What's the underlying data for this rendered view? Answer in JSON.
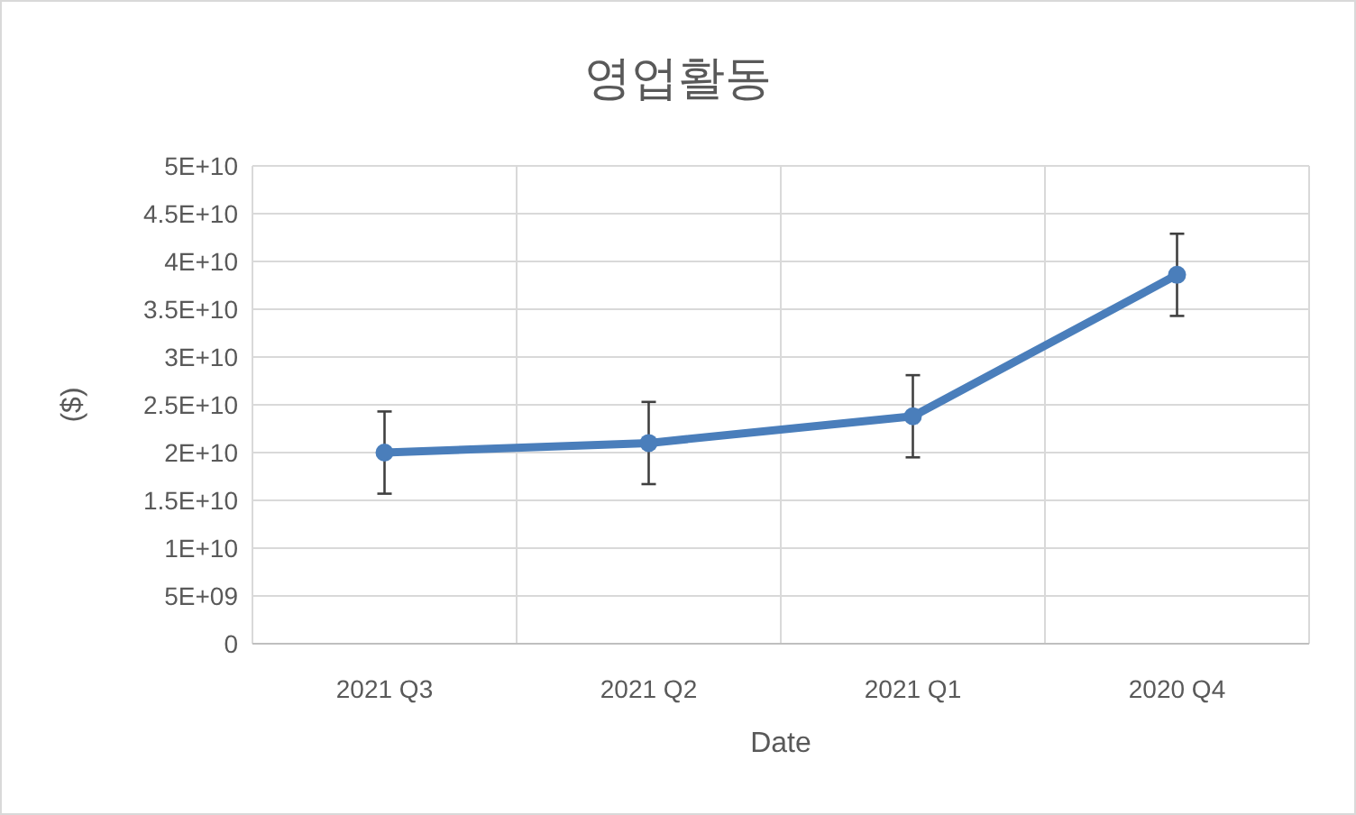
{
  "chart_data": {
    "type": "line",
    "title": "영업활동",
    "xlabel": "Date",
    "ylabel": "($)",
    "categories": [
      "2021 Q3",
      "2021 Q2",
      "2021 Q1",
      "2020 Q4"
    ],
    "series": [
      {
        "color": "#4a7ebb",
        "values": [
          20000000000.0,
          21000000000.0,
          23800000000.0,
          38600000000.0
        ],
        "errors": [
          4300000000.0,
          4300000000.0,
          4300000000.0,
          4300000000.0
        ]
      }
    ],
    "ylim": [
      0,
      50000000000.0
    ],
    "yticks": [
      0,
      {
        "value": 5000000000.0,
        "label": "5E+09"
      },
      {
        "value": 10000000000.0,
        "label": "1E+10"
      },
      {
        "value": 15000000000.0,
        "label": "1.5E+10"
      },
      {
        "value": 20000000000.0,
        "label": "2E+10"
      },
      {
        "value": 25000000000.0,
        "label": "2.5E+10"
      },
      {
        "value": 30000000000.0,
        "label": "3E+10"
      },
      {
        "value": 35000000000.0,
        "label": "3.5E+10"
      },
      {
        "value": 40000000000.0,
        "label": "4E+10"
      },
      {
        "value": 45000000000.0,
        "label": "4.5E+10"
      },
      {
        "value": 50000000000.0,
        "label": "5E+10"
      }
    ],
    "grid": true,
    "marker": "circle",
    "line_style": "solid"
  }
}
